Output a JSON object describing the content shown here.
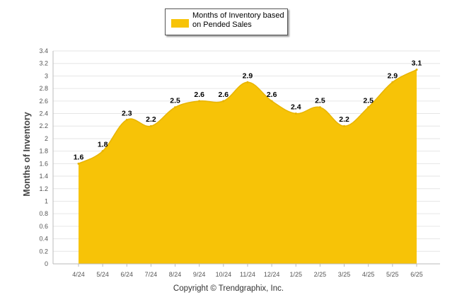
{
  "chart_data": {
    "type": "area",
    "categories": [
      "4/24",
      "5/24",
      "6/24",
      "7/24",
      "8/24",
      "9/24",
      "10/24",
      "11/24",
      "12/24",
      "1/25",
      "2/25",
      "3/25",
      "4/25",
      "5/25",
      "6/25"
    ],
    "series": [
      {
        "name": "Months of Inventory based on Pended Sales",
        "values": [
          1.6,
          1.8,
          2.3,
          2.2,
          2.5,
          2.6,
          2.6,
          2.9,
          2.6,
          2.4,
          2.5,
          2.2,
          2.5,
          2.9,
          3.1
        ],
        "labels": [
          "1.6",
          "1.8",
          "2.3",
          "2.2",
          "2.5",
          "2.6",
          "2.6",
          "2.9",
          "2.6",
          "2.4",
          "2.5",
          "2.2",
          "2.5",
          "2.9",
          "3.1"
        ],
        "color": "#F7C307"
      }
    ],
    "ylabel": "Months of Inventory",
    "xlabel": "",
    "ylim": [
      0,
      3.4
    ],
    "yticks": [
      "0",
      "0.2",
      "0.4",
      "0.6",
      "0.8",
      "1",
      "1.2",
      "1.4",
      "1.6",
      "1.8",
      "2",
      "2.2",
      "2.4",
      "2.6",
      "2.8",
      "3",
      "3.2",
      "3.4"
    ],
    "grid": true,
    "legend_position": "top-center"
  },
  "legend": {
    "label_line1": "Months of Inventory based",
    "label_line2": "on Pended Sales"
  },
  "footer": {
    "copyright": "Copyright © Trendgraphix, Inc."
  }
}
